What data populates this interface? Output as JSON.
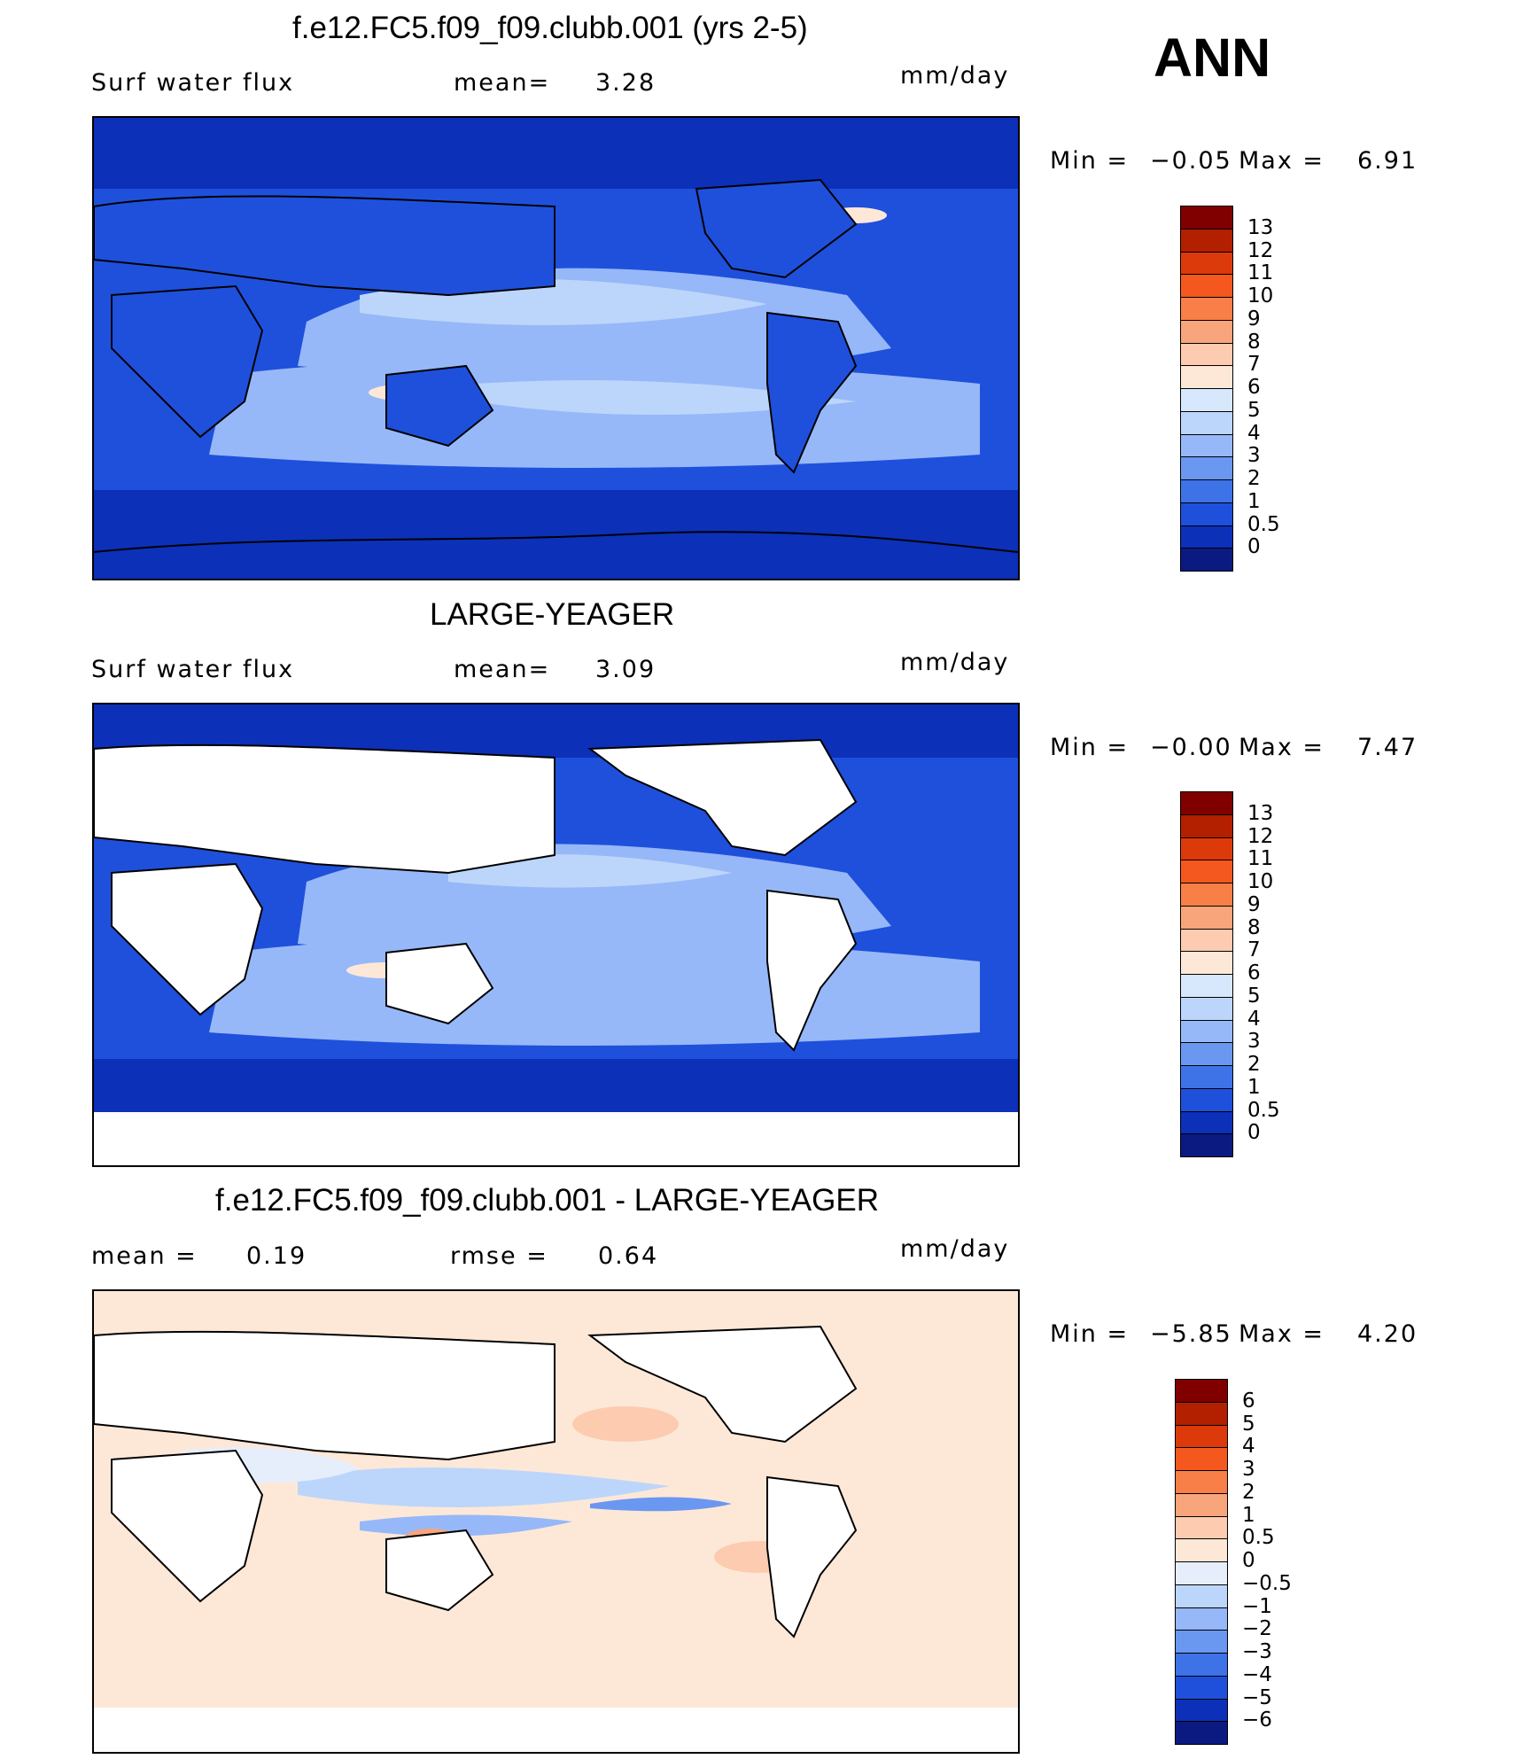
{
  "season": "ANN",
  "panels": [
    {
      "id": "model",
      "title": "f.e12.FC5.f09_f09.clubb.001 (yrs 2-5)",
      "left_label": "Surf water flux",
      "mid_label": "mean=",
      "mid_value": "3.28",
      "units": "mm/day",
      "min_label": "Min =",
      "min_value": "−0.05",
      "max_label": "Max =",
      "max_value": "6.91",
      "colorbar": {
        "labels": [
          "13",
          "12",
          "11",
          "10",
          "9",
          "8",
          "7",
          "6",
          "5",
          "4",
          "3",
          "2",
          "1",
          "0.5",
          "0"
        ],
        "colors": [
          "#800000",
          "#b22000",
          "#dc3a0a",
          "#f4581e",
          "#f88048",
          "#f9a57b",
          "#fdcbb0",
          "#fde8d8",
          "#d8e8fc",
          "#bcd6fb",
          "#96b8f8",
          "#6a97f0",
          "#3e73e8",
          "#1f50dc",
          "#0c30b8",
          "#0a1a80"
        ]
      }
    },
    {
      "id": "obs",
      "title": "LARGE-YEAGER",
      "left_label": "Surf water flux",
      "mid_label": "mean=",
      "mid_value": "3.09",
      "units": "mm/day",
      "min_label": "Min =",
      "min_value": "−0.00",
      "max_label": "Max =",
      "max_value": "7.47",
      "colorbar": {
        "labels": [
          "13",
          "12",
          "11",
          "10",
          "9",
          "8",
          "7",
          "6",
          "5",
          "4",
          "3",
          "2",
          "1",
          "0.5",
          "0"
        ],
        "colors": [
          "#800000",
          "#b22000",
          "#dc3a0a",
          "#f4581e",
          "#f88048",
          "#f9a57b",
          "#fdcbb0",
          "#fde8d8",
          "#d8e8fc",
          "#bcd6fb",
          "#96b8f8",
          "#6a97f0",
          "#3e73e8",
          "#1f50dc",
          "#0c30b8",
          "#0a1a80"
        ]
      }
    },
    {
      "id": "diff",
      "title": "f.e12.FC5.f09_f09.clubb.001 - LARGE-YEAGER",
      "left_label": "mean =",
      "left_value": "0.19",
      "mid_label": "rmse =",
      "mid_value": "0.64",
      "units": "mm/day",
      "min_label": "Min =",
      "min_value": "−5.85",
      "max_label": "Max =",
      "max_value": "4.20",
      "colorbar": {
        "labels": [
          "6",
          "5",
          "4",
          "3",
          "2",
          "1",
          "0.5",
          "0",
          "−0.5",
          "−1",
          "−2",
          "−3",
          "−4",
          "−5",
          "−6"
        ],
        "colors": [
          "#800000",
          "#b22000",
          "#dc3a0a",
          "#f4581e",
          "#f88048",
          "#f9a57b",
          "#fdcbb0",
          "#fde8d8",
          "#e6eefc",
          "#bcd6fb",
          "#96b8f8",
          "#6a97f0",
          "#3e73e8",
          "#1f50dc",
          "#0c30b8",
          "#0a1a80"
        ]
      }
    }
  ],
  "chart_data": [
    {
      "type": "heatmap",
      "title": "f.e12.FC5.f09_f09.clubb.001 (yrs 2-5)",
      "variable": "Surf water flux",
      "units": "mm/day",
      "mean": 3.28,
      "min": -0.05,
      "max": 6.91,
      "contour_levels": [
        0,
        0.5,
        1,
        2,
        3,
        4,
        5,
        6,
        7,
        8,
        9,
        10,
        11,
        12,
        13
      ]
    },
    {
      "type": "heatmap",
      "title": "LARGE-YEAGER",
      "variable": "Surf water flux",
      "units": "mm/day",
      "mean": 3.09,
      "min": -0.0,
      "max": 7.47,
      "contour_levels": [
        0,
        0.5,
        1,
        2,
        3,
        4,
        5,
        6,
        7,
        8,
        9,
        10,
        11,
        12,
        13
      ]
    },
    {
      "type": "heatmap",
      "title": "f.e12.FC5.f09_f09.clubb.001 - LARGE-YEAGER",
      "units": "mm/day",
      "mean": 0.19,
      "rmse": 0.64,
      "min": -5.85,
      "max": 4.2,
      "contour_levels": [
        -6,
        -5,
        -4,
        -3,
        -2,
        -1,
        -0.5,
        0,
        0.5,
        1,
        2,
        3,
        4,
        5,
        6
      ]
    }
  ]
}
